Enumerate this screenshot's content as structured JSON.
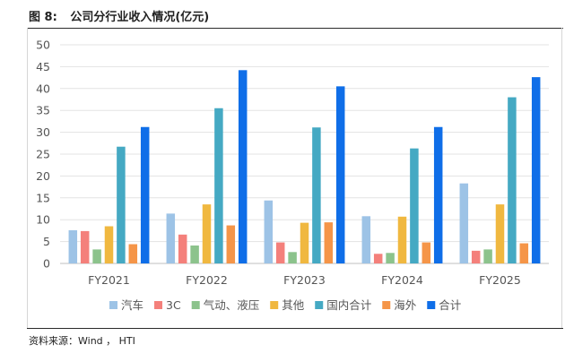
{
  "figure": {
    "label": "图 8:",
    "title": "公司分行业收入情况(亿元)"
  },
  "source": "资料来源：Wind ， HTI",
  "chart_data": {
    "type": "bar",
    "categories": [
      "FY2021",
      "FY2022",
      "FY2023",
      "FY2024",
      "FY2025"
    ],
    "ylim": [
      0,
      50
    ],
    "yticks": [
      "0",
      "5",
      "10",
      "15",
      "20",
      "25",
      "30",
      "35",
      "40",
      "45",
      "50"
    ],
    "grid": true,
    "legend_position": "bottom",
    "series": [
      {
        "name": "汽车",
        "color": "#9DC3E6",
        "values": [
          7.6,
          11.4,
          14.4,
          10.8,
          18.3
        ]
      },
      {
        "name": "3C",
        "color": "#F4807B",
        "values": [
          7.4,
          6.6,
          4.8,
          2.2,
          2.9
        ]
      },
      {
        "name": "气动、液压",
        "color": "#8CC38C",
        "values": [
          3.2,
          4.1,
          2.6,
          2.4,
          3.2
        ]
      },
      {
        "name": "其他",
        "color": "#F0B840",
        "values": [
          8.5,
          13.5,
          9.3,
          10.7,
          13.5
        ]
      },
      {
        "name": "国内合计",
        "color": "#45A9C3",
        "values": [
          26.7,
          35.5,
          31.1,
          26.3,
          38.0
        ]
      },
      {
        "name": "海外",
        "color": "#F59548",
        "values": [
          4.4,
          8.7,
          9.4,
          4.8,
          4.6
        ]
      },
      {
        "name": "合计",
        "color": "#0F6EE8",
        "values": [
          31.2,
          44.2,
          40.5,
          31.2,
          42.6
        ]
      }
    ]
  }
}
